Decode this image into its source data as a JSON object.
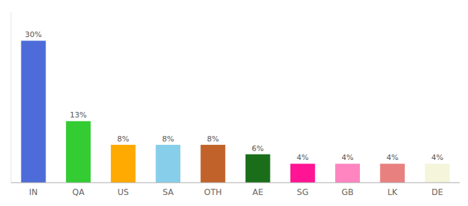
{
  "chart_data": {
    "type": "bar",
    "categories": [
      "IN",
      "QA",
      "US",
      "SA",
      "OTH",
      "AE",
      "SG",
      "GB",
      "LK",
      "DE"
    ],
    "values": [
      30,
      13,
      8,
      8,
      8,
      6,
      4,
      4,
      4,
      4
    ],
    "value_labels": [
      "30%",
      "13%",
      "8%",
      "8%",
      "8%",
      "6%",
      "4%",
      "4%",
      "4%",
      "4%"
    ],
    "colors": [
      "#4d6cd9",
      "#33cc33",
      "#ffaa00",
      "#87ceeb",
      "#c0622a",
      "#1a6e1a",
      "#ff1493",
      "#ff85c0",
      "#e88080",
      "#f5f5dc"
    ],
    "ylim": [
      0,
      36
    ],
    "data_labels": true,
    "tick_labels": "x"
  }
}
